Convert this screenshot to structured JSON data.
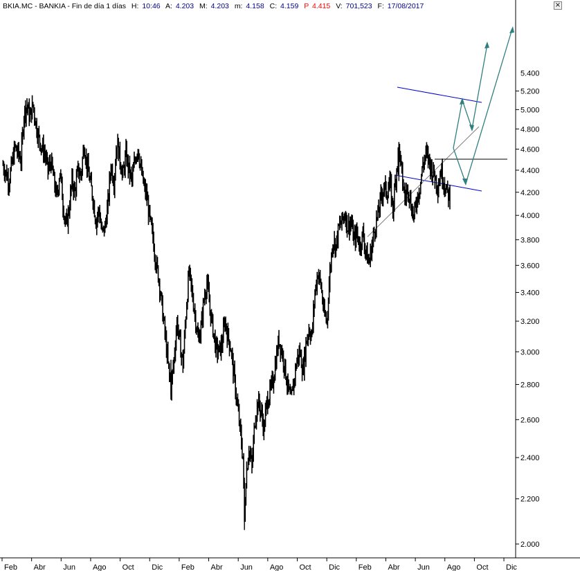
{
  "header": {
    "symbol": "BKIA.MC - BANKIA - Fin de día 1 días",
    "h_label": "H:",
    "h_value": "10:46",
    "a_label": "A:",
    "a_value": "4.203",
    "m_label": "M:",
    "m_value": "4.203",
    "mn_label": "m:",
    "mn_value": "4.158",
    "c_label": "C:",
    "c_value": "4.159",
    "p_label": "P",
    "p_value": "4.415",
    "v_label": "V:",
    "v_value": "701,523",
    "f_label": "F:",
    "f_value": "17/08/2017",
    "close_icon": "close-icon",
    "close_glyph": "×"
  },
  "colors": {
    "background": "#ffffff",
    "price": "#000000",
    "header_label": "#000000",
    "header_value": "#00008b",
    "header_p": "#ff0000",
    "channel": "#0000cc",
    "trendline": "#7f7f7f",
    "projection": "#2f7f7f",
    "axis": "#000000"
  },
  "chart_data": {
    "type": "line",
    "scale": "log",
    "y_label_top_partial": "5.400",
    "y_ticks": [
      "5.200",
      "5.000",
      "4.800",
      "4.600",
      "4.400",
      "4.200",
      "4.000",
      "3.800",
      "3.600",
      "3.400",
      "3.200",
      "3.000",
      "2.800",
      "2.600",
      "2.400",
      "2.200",
      "2.000"
    ],
    "x_ticks": [
      "Feb",
      "Abr",
      "Jun",
      "Ago",
      "Oct",
      "Dic",
      "Feb",
      "Abr",
      "Jun",
      "Ago",
      "Oct",
      "Dic",
      "Feb",
      "Abr",
      "Jun",
      "Ago",
      "Oct",
      "Dic"
    ],
    "ylim": [
      2.0,
      5.25
    ],
    "grid": false,
    "series": [
      {
        "style": "daily-bars",
        "points": [
          [
            0,
            4.45
          ],
          [
            2,
            4.3
          ],
          [
            4,
            4.62
          ],
          [
            6,
            4.5
          ],
          [
            7,
            4.95
          ],
          [
            8,
            5.05
          ],
          [
            9,
            4.92
          ],
          [
            10,
            5.05
          ],
          [
            11,
            4.85
          ],
          [
            12,
            4.7
          ],
          [
            13,
            4.62
          ],
          [
            14,
            4.55
          ],
          [
            15,
            4.4
          ],
          [
            16,
            4.48
          ],
          [
            17,
            4.3
          ],
          [
            18,
            4.15
          ],
          [
            19,
            4.4
          ],
          [
            20,
            4.1
          ],
          [
            21,
            3.9
          ],
          [
            22,
            4.05
          ],
          [
            23,
            4.3
          ],
          [
            24,
            4.2
          ],
          [
            25,
            4.4
          ],
          [
            26,
            4.35
          ],
          [
            27,
            4.65
          ],
          [
            28,
            4.45
          ],
          [
            29,
            4.3
          ],
          [
            30,
            4.15
          ],
          [
            31,
            3.95
          ],
          [
            32,
            4.05
          ],
          [
            33,
            3.85
          ],
          [
            34,
            3.9
          ],
          [
            35,
            4.1
          ],
          [
            36,
            4.45
          ],
          [
            37,
            4.3
          ],
          [
            38,
            4.68
          ],
          [
            39,
            4.5
          ],
          [
            40,
            4.35
          ],
          [
            41,
            4.55
          ],
          [
            42,
            4.4
          ],
          [
            43,
            4.3
          ],
          [
            44,
            4.5
          ],
          [
            45,
            4.62
          ],
          [
            46,
            4.4
          ],
          [
            47,
            4.25
          ],
          [
            48,
            4.15
          ],
          [
            49,
            3.95
          ],
          [
            50,
            3.82
          ],
          [
            51,
            3.62
          ],
          [
            52,
            3.5
          ],
          [
            53,
            3.3
          ],
          [
            54,
            3.12
          ],
          [
            55,
            2.92
          ],
          [
            56,
            2.78
          ],
          [
            57,
            2.95
          ],
          [
            58,
            3.2
          ],
          [
            59,
            3.05
          ],
          [
            60,
            2.92
          ],
          [
            61,
            3.25
          ],
          [
            62,
            3.55
          ],
          [
            63,
            3.4
          ],
          [
            64,
            3.25
          ],
          [
            65,
            3.08
          ],
          [
            66,
            3.15
          ],
          [
            67,
            3.35
          ],
          [
            68,
            3.48
          ],
          [
            69,
            3.28
          ],
          [
            70,
            3.15
          ],
          [
            71,
            3.02
          ],
          [
            72,
            3.0
          ],
          [
            73,
            3.05
          ],
          [
            74,
            3.2
          ],
          [
            75,
            3.1
          ],
          [
            76,
            3.02
          ],
          [
            77,
            2.85
          ],
          [
            78,
            2.7
          ],
          [
            79,
            2.55
          ],
          [
            80,
            2.4
          ],
          [
            80.5,
            2.1
          ],
          [
            81,
            2.3
          ],
          [
            82,
            2.45
          ],
          [
            83,
            2.35
          ],
          [
            84,
            2.6
          ],
          [
            85,
            2.7
          ],
          [
            86,
            2.65
          ],
          [
            87,
            2.55
          ],
          [
            88,
            2.7
          ],
          [
            89,
            2.75
          ],
          [
            90,
            2.82
          ],
          [
            91,
            2.95
          ],
          [
            92,
            3.08
          ],
          [
            93,
            3.0
          ],
          [
            94,
            2.9
          ],
          [
            95,
            2.78
          ],
          [
            96,
            2.7
          ],
          [
            97,
            2.82
          ],
          [
            98,
            2.95
          ],
          [
            99,
            3.0
          ],
          [
            100,
            2.88
          ],
          [
            101,
            3.05
          ],
          [
            102,
            3.15
          ],
          [
            103,
            3.1
          ],
          [
            104,
            3.4
          ],
          [
            105,
            3.55
          ],
          [
            106,
            3.45
          ],
          [
            107,
            3.25
          ],
          [
            108,
            3.2
          ],
          [
            109,
            3.55
          ],
          [
            110,
            3.8
          ],
          [
            111,
            3.75
          ],
          [
            112,
            3.9
          ],
          [
            113,
            3.95
          ],
          [
            114,
            4.02
          ],
          [
            115,
            3.9
          ],
          [
            116,
            3.95
          ],
          [
            117,
            3.8
          ],
          [
            118,
            3.85
          ],
          [
            119,
            3.75
          ],
          [
            120,
            3.85
          ],
          [
            121,
            3.7
          ],
          [
            122,
            3.62
          ],
          [
            123,
            3.75
          ],
          [
            124,
            3.9
          ],
          [
            125,
            4.0
          ],
          [
            126,
            4.15
          ],
          [
            127,
            4.25
          ],
          [
            128,
            4.2
          ],
          [
            129,
            4.28
          ],
          [
            130,
            4.05
          ],
          [
            131,
            4.35
          ],
          [
            132,
            4.62
          ],
          [
            133,
            4.35
          ],
          [
            134,
            4.15
          ],
          [
            135,
            4.25
          ],
          [
            136,
            4.1
          ],
          [
            137,
            3.98
          ],
          [
            138,
            4.15
          ],
          [
            139,
            4.25
          ],
          [
            140,
            4.45
          ],
          [
            141,
            4.55
          ],
          [
            142,
            4.5
          ],
          [
            143,
            4.4
          ],
          [
            144,
            4.35
          ],
          [
            145,
            4.25
          ],
          [
            146,
            4.4
          ],
          [
            147,
            4.3
          ],
          [
            148,
            4.2
          ],
          [
            149,
            4.17
          ]
        ]
      }
    ]
  }
}
